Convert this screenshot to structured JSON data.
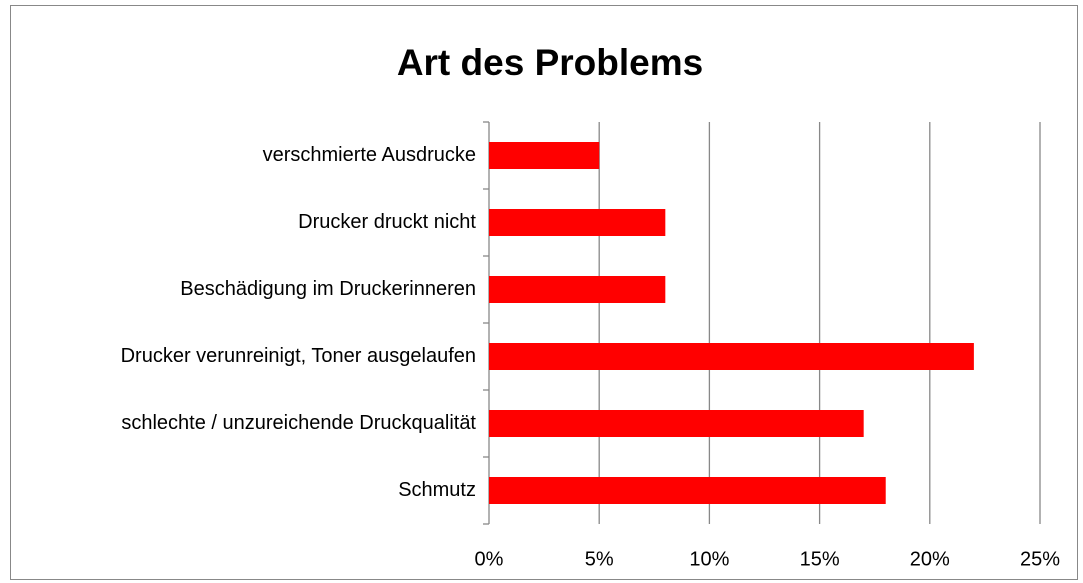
{
  "chart_data": {
    "type": "barh",
    "title": "Art des Problems",
    "categories": [
      "verschmierte Ausdrucke",
      "Drucker druckt nicht",
      "Beschädigung im Druckerinneren",
      "Drucker verunreinigt, Toner ausgelaufen",
      "schlechte / unzureichende Druckqualität",
      "Schmutz"
    ],
    "values": [
      5,
      8,
      8,
      22,
      17,
      18
    ],
    "color": "#ff0000",
    "xlim": [
      0,
      25
    ],
    "xticks": [
      {
        "value": 0,
        "label": "0%"
      },
      {
        "value": 5,
        "label": "5%"
      },
      {
        "value": 10,
        "label": "10%"
      },
      {
        "value": 15,
        "label": "15%"
      },
      {
        "value": 20,
        "label": "20%"
      },
      {
        "value": 25,
        "label": "25%"
      }
    ],
    "grid": true
  }
}
